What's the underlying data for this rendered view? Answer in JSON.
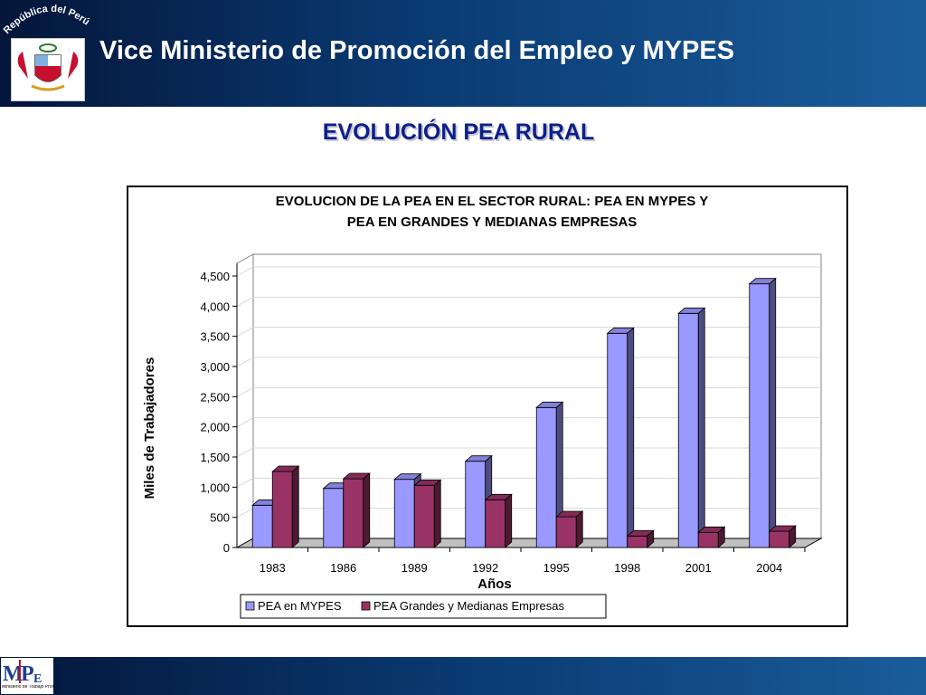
{
  "header": {
    "title": "Vice Ministerio de Promoción del Empleo y  MYPES",
    "crest_caption": "República del Perú"
  },
  "slide": {
    "title": "EVOLUCIÓN PEA RURAL"
  },
  "footer": {
    "logo_caption": "Ministerio de Trabajo Promoción del Empleo"
  },
  "colors": {
    "mypes": "#9999ff",
    "grandes": "#993366",
    "slide_title": "#0c1f8c"
  },
  "chart_data": {
    "type": "bar",
    "title": "EVOLUCION DE LA PEA EN EL SECTOR RURAL: PEA EN MYPES Y PEA EN GRANDES Y MEDIANAS EMPRESAS",
    "title_lines": [
      "EVOLUCION DE LA PEA EN EL SECTOR RURAL: PEA EN MYPES Y",
      "PEA EN GRANDES Y MEDIANAS EMPRESAS"
    ],
    "xlabel": "Años",
    "ylabel": "Miles de Trabajadores",
    "categories": [
      "1983",
      "1986",
      "1989",
      "1992",
      "1995",
      "1998",
      "2001",
      "2004"
    ],
    "series": [
      {
        "name": "PEA en MYPES",
        "color": "#9999ff",
        "values": [
          700,
          980,
          1130,
          1430,
          2320,
          3550,
          3880,
          4370
        ]
      },
      {
        "name": "PEA Grandes y Medianas Empresas",
        "color": "#993366",
        "values": [
          1260,
          1140,
          1030,
          790,
          510,
          190,
          250,
          270
        ]
      }
    ],
    "ylim": [
      0,
      4500
    ],
    "yticks": [
      "0",
      "500",
      "1,000",
      "1,500",
      "2,000",
      "2,500",
      "3,000",
      "3,500",
      "4,000",
      "4,500"
    ],
    "grid": true,
    "legend_position": "bottom",
    "style": "3d-clustered-column"
  }
}
